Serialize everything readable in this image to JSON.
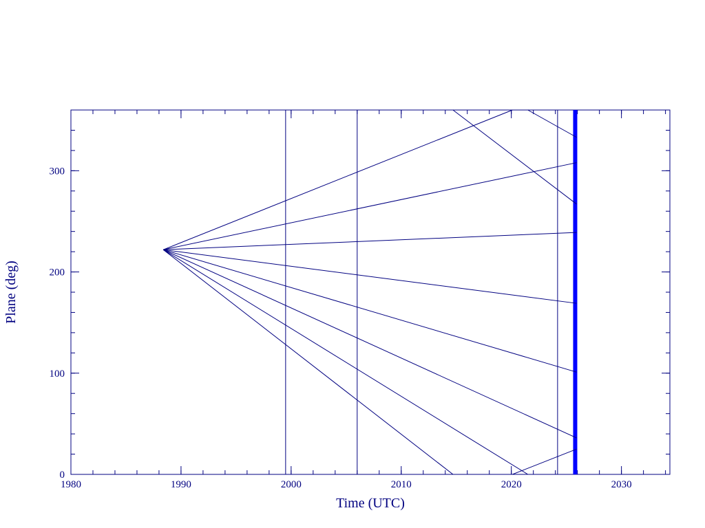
{
  "chart_data": {
    "type": "line",
    "xlabel": "Time (UTC)",
    "ylabel": "Plane (deg)",
    "xlim": [
      1980,
      2034.4
    ],
    "ylim": [
      0,
      360
    ],
    "xticks": [
      1980,
      1990,
      2000,
      2010,
      2020,
      2030
    ],
    "yticks": [
      0,
      100,
      200,
      300
    ],
    "xminor": 2,
    "yminor": 20,
    "axis_color": "#000080",
    "series": [
      {
        "color": "#000080",
        "x": [
          1988.39,
          2020.1,
          null,
          2020.1,
          2025.93
        ],
        "values": [
          222,
          360,
          null,
          0,
          25
        ]
      },
      {
        "color": "#000080",
        "x": [
          1988.39,
          2025.93
        ],
        "values": [
          222,
          308
        ]
      },
      {
        "color": "#000080",
        "x": [
          1988.39,
          2025.93
        ],
        "values": [
          222,
          239
        ]
      },
      {
        "color": "#000080",
        "x": [
          1988.39,
          2025.93
        ],
        "values": [
          222,
          169
        ]
      },
      {
        "color": "#000080",
        "x": [
          1988.39,
          2025.93
        ],
        "values": [
          222,
          101
        ]
      },
      {
        "color": "#000080",
        "x": [
          1988.39,
          2025.93
        ],
        "values": [
          222,
          36
        ]
      },
      {
        "color": "#000080",
        "x": [
          1988.39,
          2021.5,
          null,
          2021.5,
          2025.93
        ],
        "values": [
          222,
          0,
          null,
          360,
          333
        ]
      },
      {
        "color": "#000080",
        "x": [
          1988.39,
          2014.7,
          null,
          2014.7,
          2025.93
        ],
        "values": [
          222,
          0,
          null,
          360,
          267
        ]
      }
    ],
    "vlines": [
      1999.5,
      2006.0,
      2024.2,
      2025.8
    ],
    "vline_widths": [
      1,
      1,
      1,
      6
    ],
    "vline_colors": [
      "#000080",
      "#000080",
      "#000080",
      "#0000ff"
    ]
  }
}
